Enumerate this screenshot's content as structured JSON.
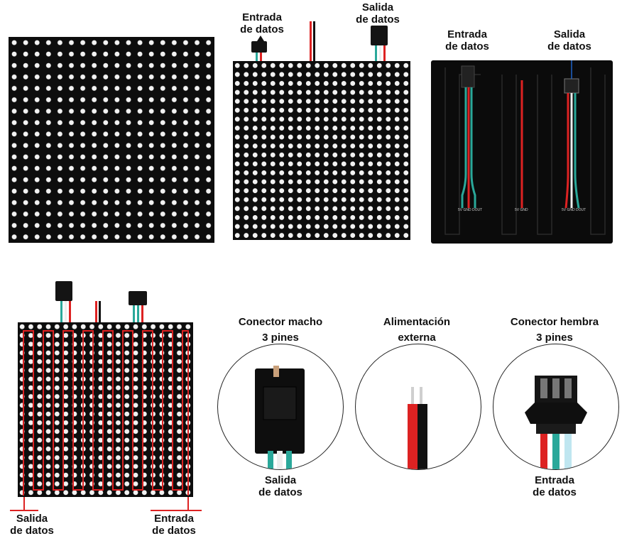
{
  "labels": {
    "top_mid_input": [
      "Entrada",
      "de datos"
    ],
    "top_mid_output": [
      "Salida",
      "de datos"
    ],
    "top_right_input": [
      "Entrada",
      "de datos"
    ],
    "top_right_output": [
      "Salida",
      "de datos"
    ],
    "male_connector": [
      "Conector macho",
      "3 pines"
    ],
    "external_power": [
      "Alimentación",
      "externa"
    ],
    "female_connector": [
      "Conector hembra",
      "3 pines"
    ],
    "male_circle_caption": [
      "Salida",
      "de datos"
    ],
    "female_circle_caption": [
      "Entrada",
      "de datos"
    ],
    "bottom_left_output": [
      "Salida",
      "de datos"
    ],
    "bottom_left_input": [
      "Entrada",
      "de datos"
    ]
  },
  "pad_labels": {
    "left_pads": [
      "5V",
      "GND",
      "DOUT"
    ],
    "middle_pads": [
      "5V",
      "GND"
    ],
    "right_pads": [
      "5V",
      "GND",
      "DOUT"
    ]
  },
  "colors": {
    "panel_dark": "#161616",
    "led_white": "#f2f2f2",
    "wire_red": "#d22222",
    "wire_white": "#eeeeee",
    "wire_teal": "#2aa89a",
    "wire_black": "#111111"
  }
}
